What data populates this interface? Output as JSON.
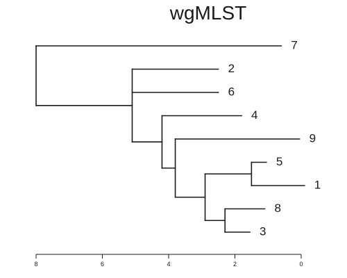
{
  "title": "wgMLST",
  "tree": {
    "children": [
      {
        "label": "7",
        "length": 7.4
      },
      {
        "length": 2.9,
        "children": [
          {
            "label": "2",
            "length": 2.6
          },
          {
            "label": "6",
            "length": 2.6
          },
          {
            "length": 0.9,
            "children": [
              {
                "label": "4",
                "length": 2.4
              },
              {
                "length": 0.4,
                "children": [
                  {
                    "label": "9",
                    "length": 3.75
                  },
                  {
                    "length": 0.9,
                    "children": [
                      {
                        "length": 1.4,
                        "children": [
                          {
                            "label": "5",
                            "length": 0.45
                          },
                          {
                            "label": "1",
                            "length": 1.6
                          }
                        ]
                      },
                      {
                        "length": 0.6,
                        "children": [
                          {
                            "label": "8",
                            "length": 1.2
                          },
                          {
                            "label": "3",
                            "length": 0.75
                          }
                        ]
                      }
                    ]
                  }
                ]
              }
            ]
          }
        ]
      }
    ]
  },
  "axis": {
    "max": 8,
    "ticks": [
      {
        "value": 8,
        "label": "8"
      },
      {
        "value": 6,
        "label": "6"
      },
      {
        "value": 4,
        "label": "4"
      },
      {
        "value": 2,
        "label": "2"
      },
      {
        "value": 0,
        "label": "0"
      }
    ]
  }
}
